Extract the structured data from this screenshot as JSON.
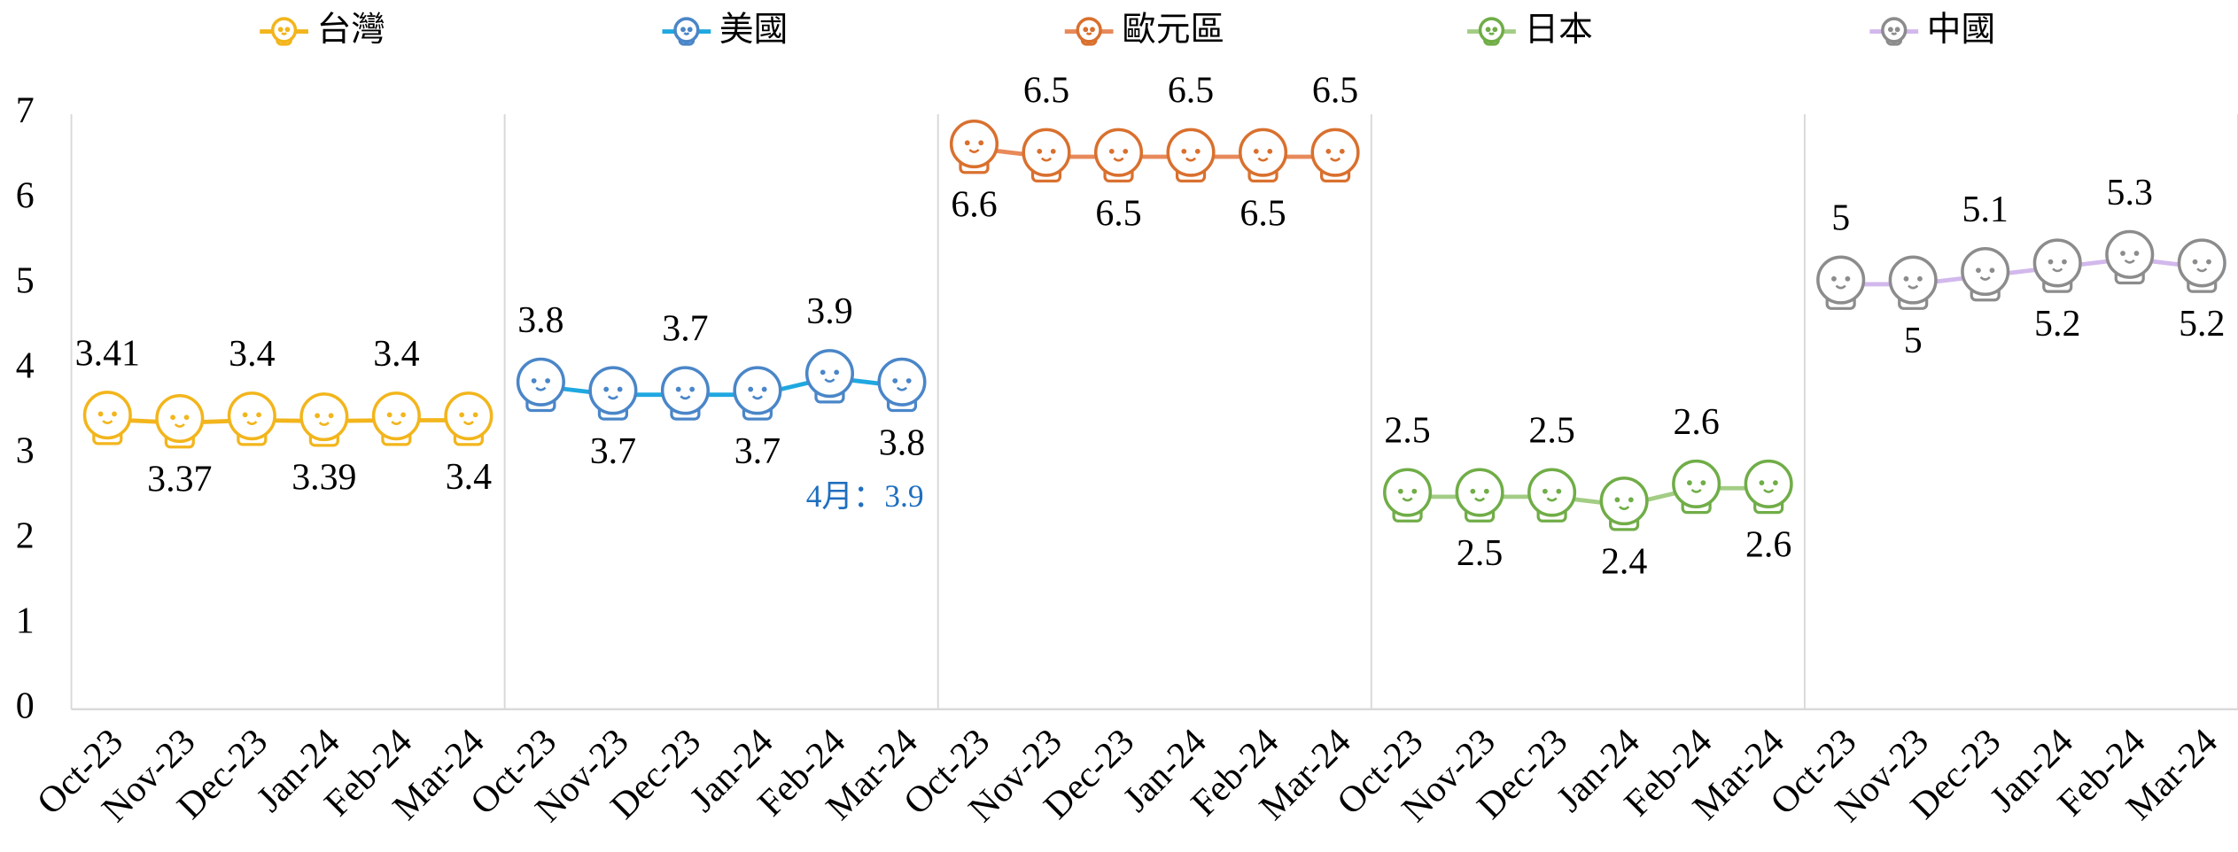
{
  "chart_data": {
    "type": "line",
    "categories": [
      "Oct-23",
      "Nov-23",
      "Dec-23",
      "Jan-24",
      "Feb-24",
      "Mar-24"
    ],
    "series": [
      {
        "name": "台灣",
        "color": "#f2b51c",
        "values": [
          3.41,
          3.37,
          3.4,
          3.39,
          3.4,
          3.4
        ]
      },
      {
        "name": "美國",
        "color": "#1fa8e0",
        "marker_color": "#4a86c8",
        "values": [
          3.8,
          3.7,
          3.7,
          3.7,
          3.9,
          3.8
        ]
      },
      {
        "name": "歐元區",
        "color": "#e8895a",
        "marker_color": "#d9702e",
        "values": [
          6.6,
          6.5,
          6.5,
          6.5,
          6.5,
          6.5
        ]
      },
      {
        "name": "日本",
        "color": "#a3cd85",
        "marker_color": "#70ad47",
        "values": [
          2.5,
          2.5,
          2.5,
          2.4,
          2.6,
          2.6
        ]
      },
      {
        "name": "中國",
        "color": "#d2b8ec",
        "marker_color": "#8c8c8c",
        "values": [
          5,
          5,
          5.1,
          5.2,
          5.3,
          5.2
        ]
      }
    ],
    "annotation": "4月：3.9",
    "annotation_color": "#1f6fbf",
    "ylim": [
      0,
      7
    ],
    "yticks": [
      0,
      1,
      2,
      3,
      4,
      5,
      6,
      7
    ]
  }
}
